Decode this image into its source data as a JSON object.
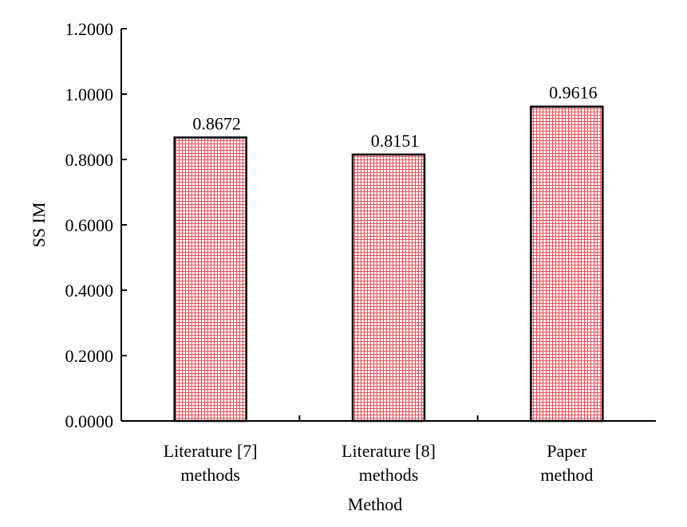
{
  "chart_data": {
    "type": "bar",
    "categories": [
      [
        "Literature [7]",
        "methods"
      ],
      [
        "Literature [8]",
        "methods"
      ],
      [
        "Paper",
        "method"
      ]
    ],
    "values": [
      0.8672,
      0.8151,
      0.9616
    ],
    "value_labels": [
      "0.8672",
      "0.8151",
      "0.9616"
    ],
    "xlabel": "Method",
    "ylabel": "SS IM",
    "ylim": [
      0,
      1.2
    ],
    "yticks": [
      0,
      0.2,
      0.4,
      0.6,
      0.8,
      1.0,
      1.2
    ],
    "ytick_labels": [
      "0.0000",
      "0.2000",
      "0.4000",
      "0.6000",
      "0.8000",
      "1.0000",
      "1.2000"
    ],
    "grid": false,
    "bar_color": "#e0505a",
    "bar_pattern": "grid-hatch",
    "bar_edge_color": "#000000"
  }
}
